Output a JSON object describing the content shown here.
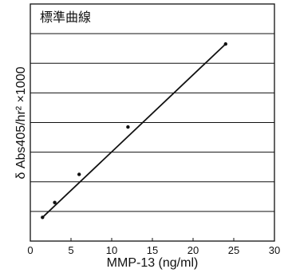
{
  "chart_data": {
    "type": "scatter",
    "title": "標準曲線",
    "xlabel": "MMP-13 (ng/ml)",
    "ylabel": "δ Abs405/hr² ×1000",
    "xlim": [
      0,
      30
    ],
    "xticks": [
      0,
      5,
      10,
      15,
      20,
      25,
      30
    ],
    "yticks_labeled": false,
    "ygrid_count": 7,
    "grid": "horizontal",
    "series": [
      {
        "points": [
          {
            "x": 1.5,
            "y": 0.8
          },
          {
            "x": 3,
            "y": 1.3
          },
          {
            "x": 6,
            "y": 2.25
          },
          {
            "x": 12,
            "y": 3.85
          },
          {
            "x": 24,
            "y": 6.65
          }
        ],
        "trendline": {
          "x": [
            1.5,
            24
          ],
          "y": [
            0.8,
            6.65
          ]
        }
      }
    ],
    "colors": {
      "line": "#111111",
      "marker": "#111111",
      "grid": "#111111"
    }
  }
}
